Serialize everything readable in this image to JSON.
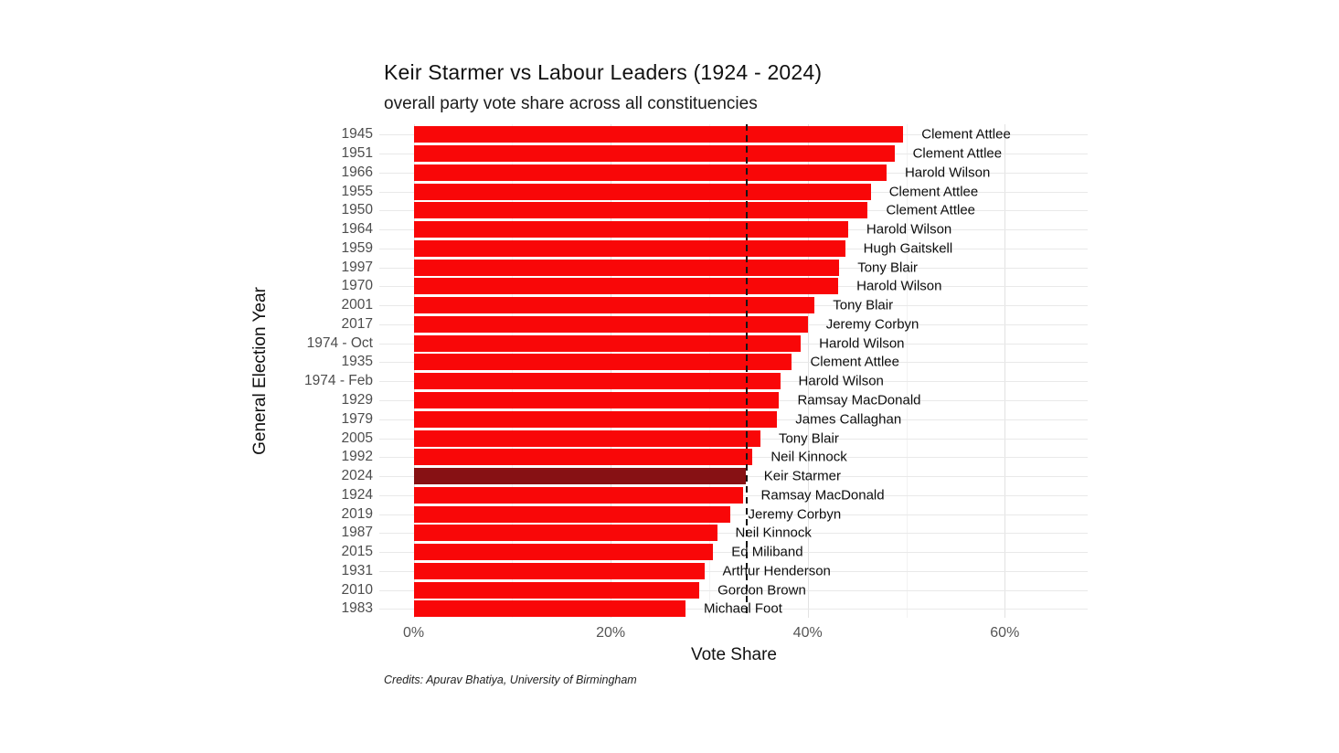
{
  "chart_data": {
    "type": "bar",
    "orientation": "horizontal",
    "title": "Keir Starmer vs Labour Leaders (1924 - 2024)",
    "subtitle": "overall party vote share across all constituencies",
    "xlabel": "Vote Share",
    "ylabel": "General Election Year",
    "credits": "Credits: Apurav Bhatiya, University of Birmingham",
    "xlim": [
      0,
      68
    ],
    "x_ticks": [
      {
        "label": "0%",
        "value": 0
      },
      {
        "label": "20%",
        "value": 20
      },
      {
        "label": "40%",
        "value": 40
      },
      {
        "label": "60%",
        "value": 60
      }
    ],
    "minor_gridlines": [
      10,
      30,
      50
    ],
    "reference_line": {
      "value": 33.7,
      "style": "dashed",
      "color": "#151515"
    },
    "colors": {
      "bar": "#f90708",
      "highlight_bar": "#871114",
      "grid_major": "#e2e2e2",
      "grid_minor": "#f2f2f2",
      "axis_text": "#4d4d4d",
      "label_text": "#0d0d0d"
    },
    "legend": "none",
    "rows": [
      {
        "year": "1945",
        "leader": "Clement Attlee",
        "value": 49.7,
        "highlight": false
      },
      {
        "year": "1951",
        "leader": "Clement Attlee",
        "value": 48.8,
        "highlight": false
      },
      {
        "year": "1966",
        "leader": "Harold Wilson",
        "value": 48.0,
        "highlight": false
      },
      {
        "year": "1955",
        "leader": "Clement Attlee",
        "value": 46.4,
        "highlight": false
      },
      {
        "year": "1950",
        "leader": "Clement Attlee",
        "value": 46.1,
        "highlight": false
      },
      {
        "year": "1964",
        "leader": "Harold Wilson",
        "value": 44.1,
        "highlight": false
      },
      {
        "year": "1959",
        "leader": "Hugh Gaitskell",
        "value": 43.8,
        "highlight": false
      },
      {
        "year": "1997",
        "leader": "Tony Blair",
        "value": 43.2,
        "highlight": false
      },
      {
        "year": "1970",
        "leader": "Harold Wilson",
        "value": 43.1,
        "highlight": false
      },
      {
        "year": "2001",
        "leader": "Tony Blair",
        "value": 40.7,
        "highlight": false
      },
      {
        "year": "2017",
        "leader": "Jeremy Corbyn",
        "value": 40.0,
        "highlight": false
      },
      {
        "year": "1974 - Oct",
        "leader": "Harold Wilson",
        "value": 39.3,
        "highlight": false
      },
      {
        "year": "1935",
        "leader": "Clement Attlee",
        "value": 38.4,
        "highlight": false
      },
      {
        "year": "1974 - Feb",
        "leader": "Harold Wilson",
        "value": 37.2,
        "highlight": false
      },
      {
        "year": "1929",
        "leader": "Ramsay MacDonald",
        "value": 37.1,
        "highlight": false
      },
      {
        "year": "1979",
        "leader": "James Callaghan",
        "value": 36.9,
        "highlight": false
      },
      {
        "year": "2005",
        "leader": "Tony Blair",
        "value": 35.2,
        "highlight": false
      },
      {
        "year": "1992",
        "leader": "Neil Kinnock",
        "value": 34.4,
        "highlight": false
      },
      {
        "year": "2024",
        "leader": "Keir Starmer",
        "value": 33.7,
        "highlight": true
      },
      {
        "year": "1924",
        "leader": "Ramsay MacDonald",
        "value": 33.4,
        "highlight": false
      },
      {
        "year": "2019",
        "leader": "Jeremy Corbyn",
        "value": 32.1,
        "highlight": false
      },
      {
        "year": "1987",
        "leader": "Neil Kinnock",
        "value": 30.8,
        "highlight": false
      },
      {
        "year": "2015",
        "leader": "Ed Miliband",
        "value": 30.4,
        "highlight": false
      },
      {
        "year": "1931",
        "leader": "Arthur Henderson",
        "value": 29.5,
        "highlight": false
      },
      {
        "year": "2010",
        "leader": "Gordon Brown",
        "value": 29.0,
        "highlight": false
      },
      {
        "year": "1983",
        "leader": "Michael Foot",
        "value": 27.6,
        "highlight": false
      }
    ]
  }
}
